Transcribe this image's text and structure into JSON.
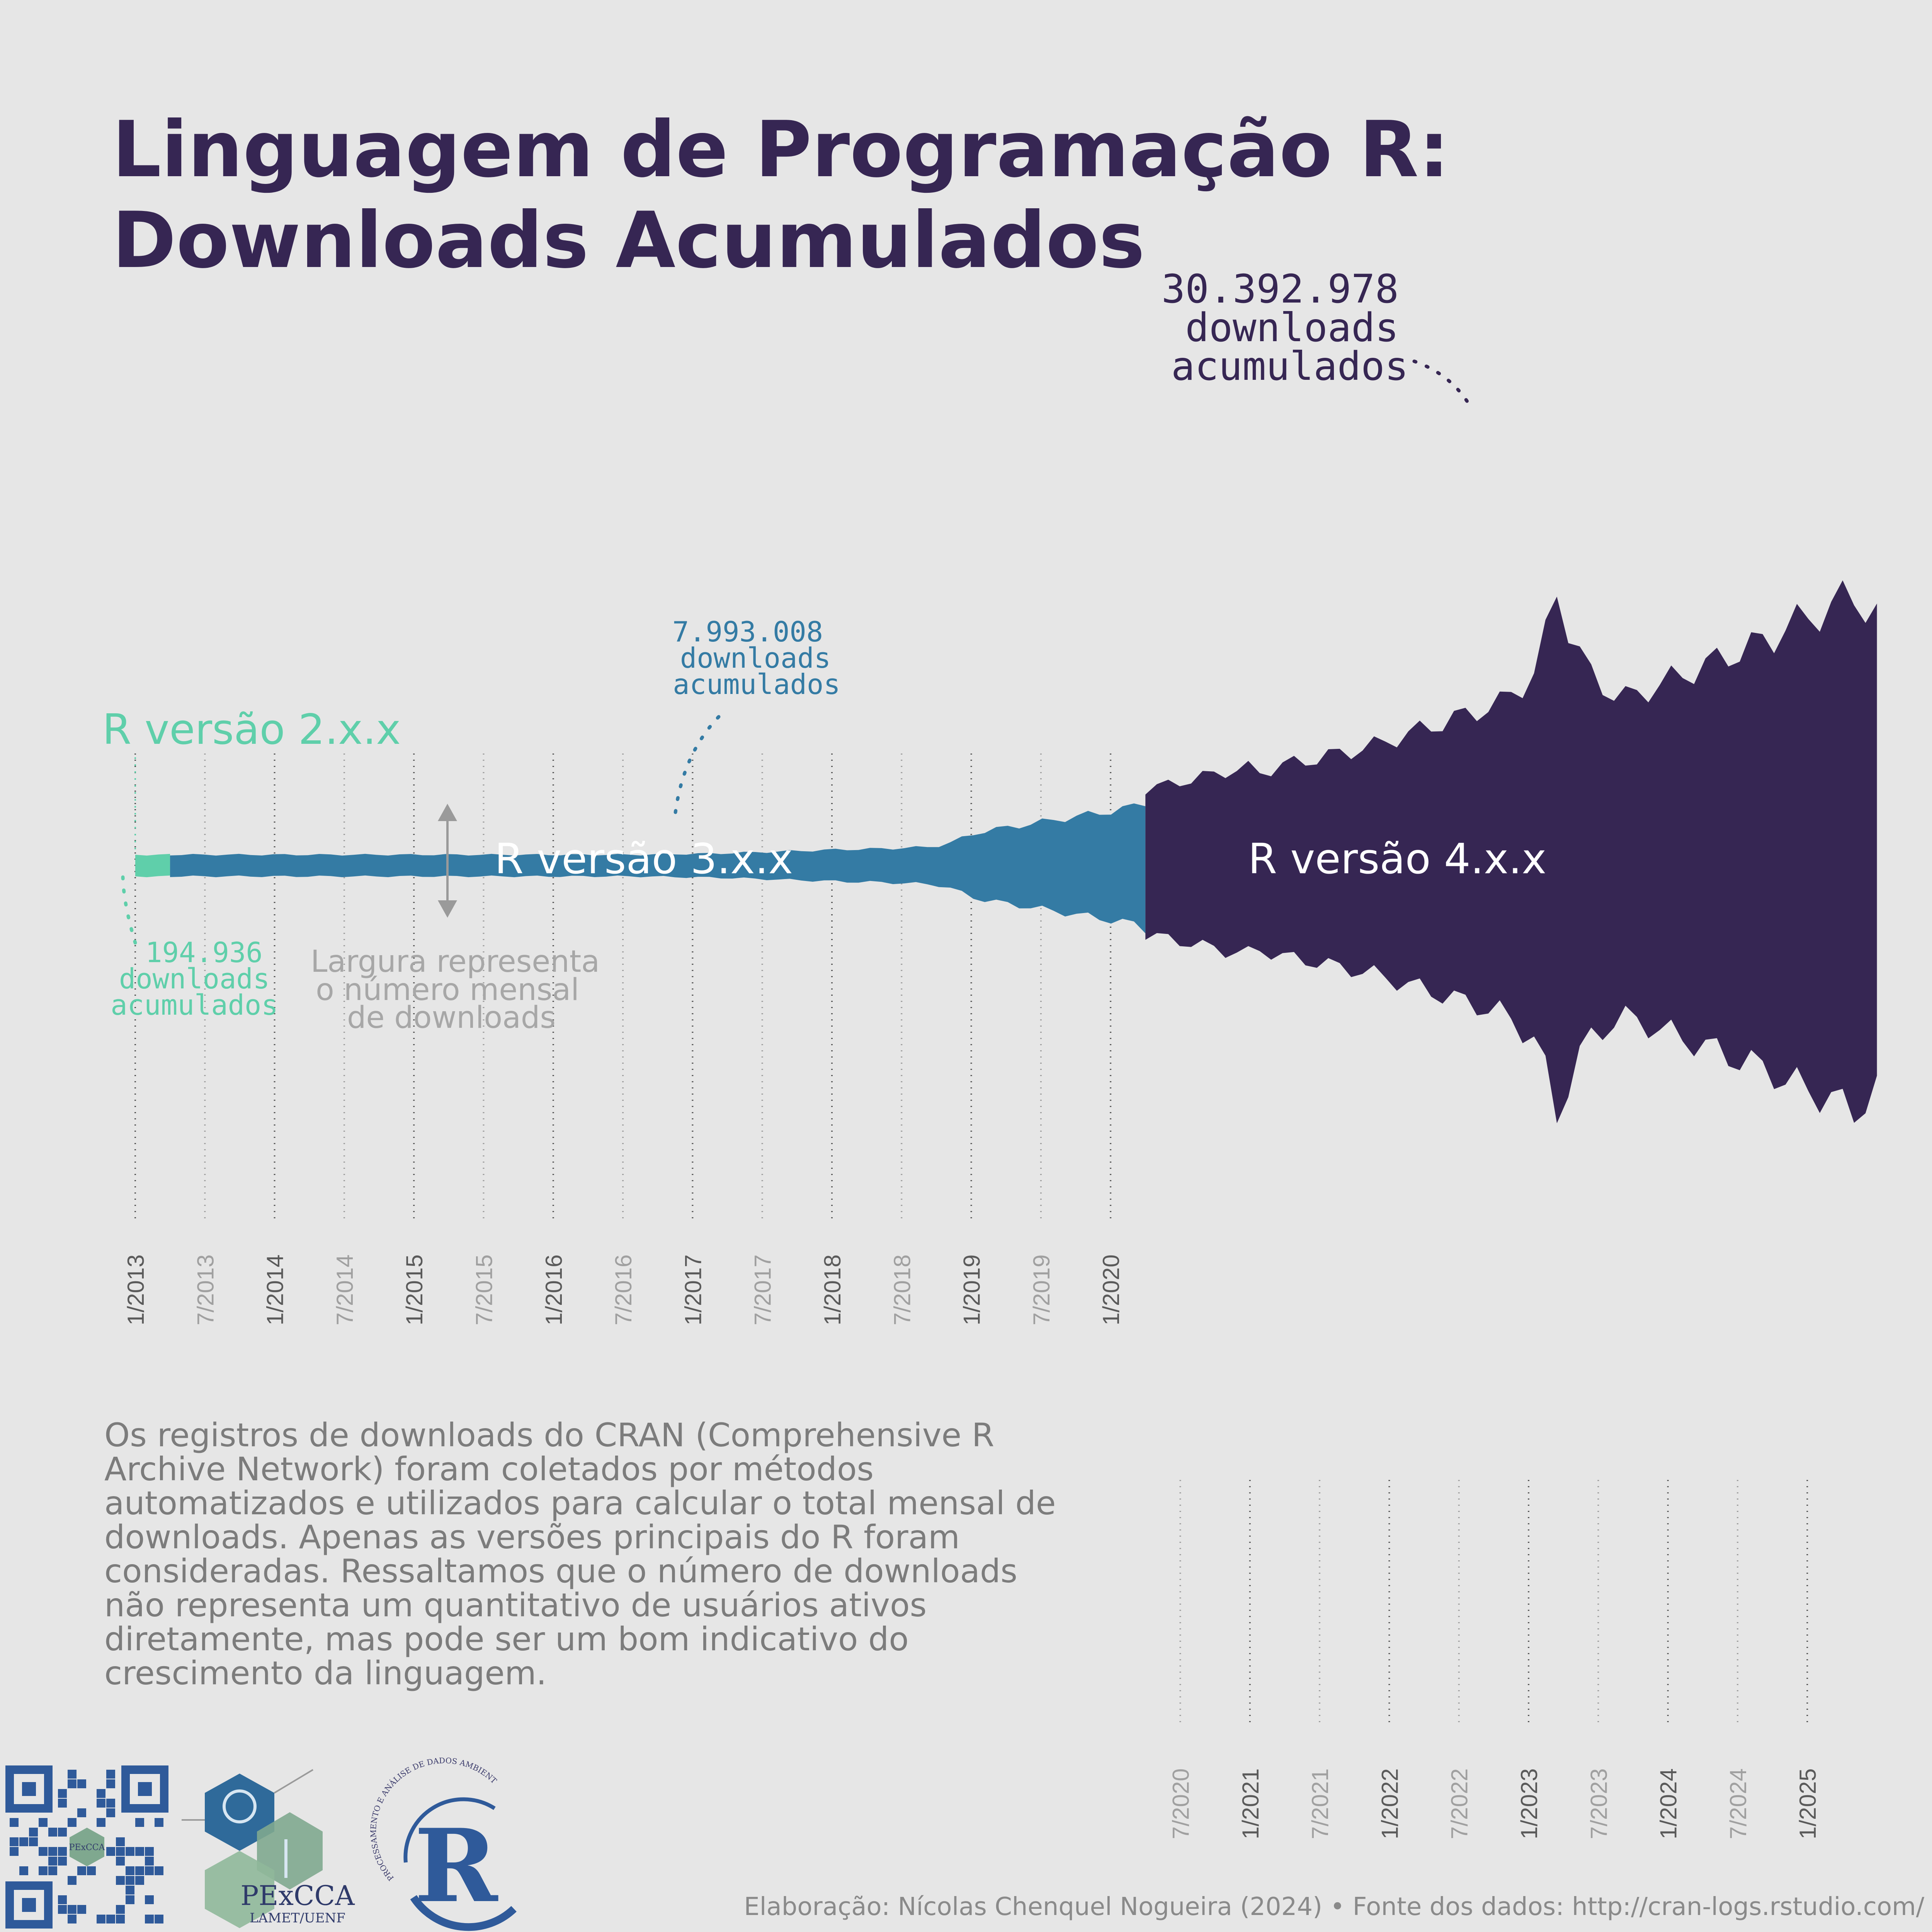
{
  "title": {
    "line1": "Linguagem de Programação R:",
    "line2": "Downloads Acumulados"
  },
  "versions": {
    "v2": "R versão 2.x.x",
    "v3": "R versão 3.x.x",
    "v4": "R versão 4.x.x"
  },
  "annotations": {
    "total_v4": {
      "number": "30.392.978",
      "line2": "downloads",
      "line3": "acumulados"
    },
    "total_v3": {
      "number": "7.993.008",
      "line2": "downloads",
      "line3": "acumulados"
    },
    "total_v2": {
      "number": "194.936",
      "line2": "downloads",
      "line3": "acumulados"
    },
    "width_note": {
      "line1": "Largura representa",
      "line2": "o número mensal",
      "line3": "de downloads"
    }
  },
  "description": [
    "Os registros de downloads do CRAN (Comprehensive R",
    "Archive Network) foram coletados por métodos",
    "automatizados e utilizados para calcular o total mensal de",
    "downloads. Apenas as versões principais do R foram",
    "consideradas. Ressaltamos que o número de downloads",
    "não representa um quantitativo de usuários ativos",
    "diretamente, mas pode ser um bom indicativo do",
    "crescimento da linguagem."
  ],
  "footer": "Elaboração: Nícolas Chenquel Nogueira (2024) • Fonte dos dados: http://cran-logs.rstudio.com/",
  "logos": {
    "pexcca_name": "PExCCA",
    "pexcca_sub": "LAMET/UENF",
    "pexcca_small": "PExCCA",
    "r_logo_arc": "PROCESSAMENTO E ANÁLISE DE DADOS AMBIENTAIS COM R",
    "r_letter": "R"
  },
  "colors": {
    "background": "#e6e6e6",
    "title": "#362653",
    "v2": "#5fcfaa",
    "v3": "#347ba4",
    "v4": "#362653",
    "muted": "#7c7c7c",
    "tick_major": "#5a5a5a",
    "tick_minor": "#a0a0a0"
  },
  "chart_data": {
    "type": "streamgraph",
    "title": "Linguagem de Programação R: Downloads Acumulados",
    "x_ticks_top": [
      "1/2013",
      "7/2013",
      "1/2014",
      "7/2014",
      "1/2015",
      "7/2015",
      "1/2016",
      "7/2016",
      "1/2017",
      "7/2017",
      "1/2018",
      "7/2018",
      "1/2019",
      "7/2019",
      "1/2020"
    ],
    "x_ticks_bottom": [
      "7/2020",
      "1/2021",
      "7/2021",
      "1/2022",
      "7/2022",
      "1/2023",
      "7/2023",
      "1/2024",
      "7/2024",
      "1/2025"
    ],
    "series": [
      {
        "name": "R versão 2.x.x",
        "cumulative_downloads": 194936,
        "period": [
          "1/2013",
          "4/2013"
        ],
        "monthly_downloads_k": [
          2,
          3,
          4,
          3
        ]
      },
      {
        "name": "R versão 3.x.x",
        "cumulative_downloads": 7993008,
        "period": [
          "4/2013",
          "4/2020"
        ],
        "monthly_downloads_k": [
          35,
          38,
          40,
          42,
          44,
          46,
          48,
          50,
          52,
          54,
          56,
          58,
          60,
          62,
          65,
          68,
          70,
          74,
          78,
          82,
          86,
          90,
          94,
          98,
          102,
          106,
          108,
          106,
          100,
          96,
          98,
          100,
          102,
          104,
          106,
          108,
          110,
          112,
          114,
          116,
          118,
          120,
          122,
          124,
          126,
          128,
          130,
          132,
          134,
          138,
          142,
          146,
          150,
          154,
          158,
          162,
          166,
          170,
          174,
          178,
          180,
          182,
          186,
          190,
          194,
          198,
          205,
          220,
          250,
          300,
          350,
          380,
          400,
          420,
          440,
          460,
          480,
          500,
          520,
          540,
          560,
          580,
          600,
          620,
          650,
          700
        ]
      },
      {
        "name": "R versão 4.x.x",
        "cumulative_downloads": 30392978,
        "period": [
          "4/2020",
          "7/2025"
        ],
        "monthly_downloads_k": [
          800,
          820,
          850,
          880,
          900,
          930,
          960,
          990,
          1000,
          1020,
          980,
          1010,
          1050,
          1080,
          1100,
          1120,
          1150,
          1180,
          1200,
          1230,
          1260,
          1300,
          1340,
          1380,
          1420,
          1460,
          1500,
          1540,
          1580,
          1620,
          1660,
          1700,
          1800,
          1900,
          2000,
          2400,
          2900,
          2500,
          2200,
          2000,
          1900,
          1800,
          1760,
          1800,
          1850,
          1900,
          1950,
          2000,
          2050,
          2100,
          2150,
          2200,
          2250,
          2300,
          2350,
          2400,
          2500,
          2550,
          2600,
          2650,
          2700,
          2800,
          2850,
          2700,
          2600
        ]
      }
    ]
  }
}
